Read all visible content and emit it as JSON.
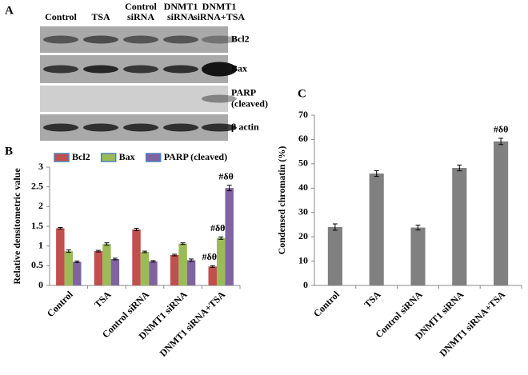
{
  "blot": {
    "panel_label": "A",
    "lanes": [
      [
        "Control"
      ],
      [
        "TSA"
      ],
      [
        "Control",
        "siRNA"
      ],
      [
        "DNMT1",
        "siRNA"
      ],
      [
        "DNMT1",
        "siRNA+TSA"
      ]
    ],
    "bands": [
      [
        "Bcl2"
      ],
      [
        "Bax"
      ],
      [
        "PARP",
        "(cleaved)"
      ],
      [
        "β actin"
      ]
    ]
  },
  "chart_data": [
    {
      "type": "bar",
      "panel_label": "B",
      "ylabel": "Relative densitometric value",
      "categories": [
        "Control",
        "TSA",
        "Control siRNA",
        "DNMT1 siRNA",
        "DNMT1 siRNA+TSA"
      ],
      "series": [
        {
          "name": "Bcl2",
          "color": "#c0504d",
          "values": [
            1.45,
            0.87,
            1.42,
            0.77,
            0.48
          ],
          "errors": [
            0.02,
            0.02,
            0.03,
            0.02,
            0.02
          ],
          "annotations": [
            null,
            null,
            null,
            null,
            "#δθ"
          ]
        },
        {
          "name": "Bax",
          "color": "#9bbb59",
          "values": [
            0.87,
            1.05,
            0.85,
            1.06,
            1.2
          ],
          "errors": [
            0.03,
            0.03,
            0.02,
            0.02,
            0.03
          ],
          "annotations": [
            null,
            null,
            null,
            null,
            "#δθ"
          ]
        },
        {
          "name": "PARP (cleaved)",
          "color": "#8064a2",
          "values": [
            0.6,
            0.67,
            0.61,
            0.64,
            2.47
          ],
          "errors": [
            0.02,
            0.02,
            0.02,
            0.03,
            0.07
          ],
          "annotations": [
            null,
            null,
            null,
            null,
            "#δθ"
          ]
        }
      ],
      "ylim": [
        0,
        3
      ],
      "yticks": [
        0,
        0.5,
        1,
        1.5,
        2,
        2.5,
        3
      ],
      "legend": "top"
    },
    {
      "type": "bar",
      "panel_label": "C",
      "ylabel": "Condensed chromatin (%)",
      "categories": [
        "Control",
        "TSA",
        "Control siRNA",
        "DNMT1 siRNA",
        "DNMT1 siRNA+TSA"
      ],
      "values": [
        24,
        46,
        23.8,
        48.3,
        59.2
      ],
      "errors": [
        1.3,
        1.2,
        1,
        1.2,
        1.3
      ],
      "color": "#808080",
      "annotations": [
        null,
        null,
        null,
        null,
        "#δθ"
      ],
      "ylim": [
        0,
        70
      ],
      "yticks": [
        0,
        10,
        20,
        30,
        40,
        50,
        60,
        70
      ]
    }
  ]
}
